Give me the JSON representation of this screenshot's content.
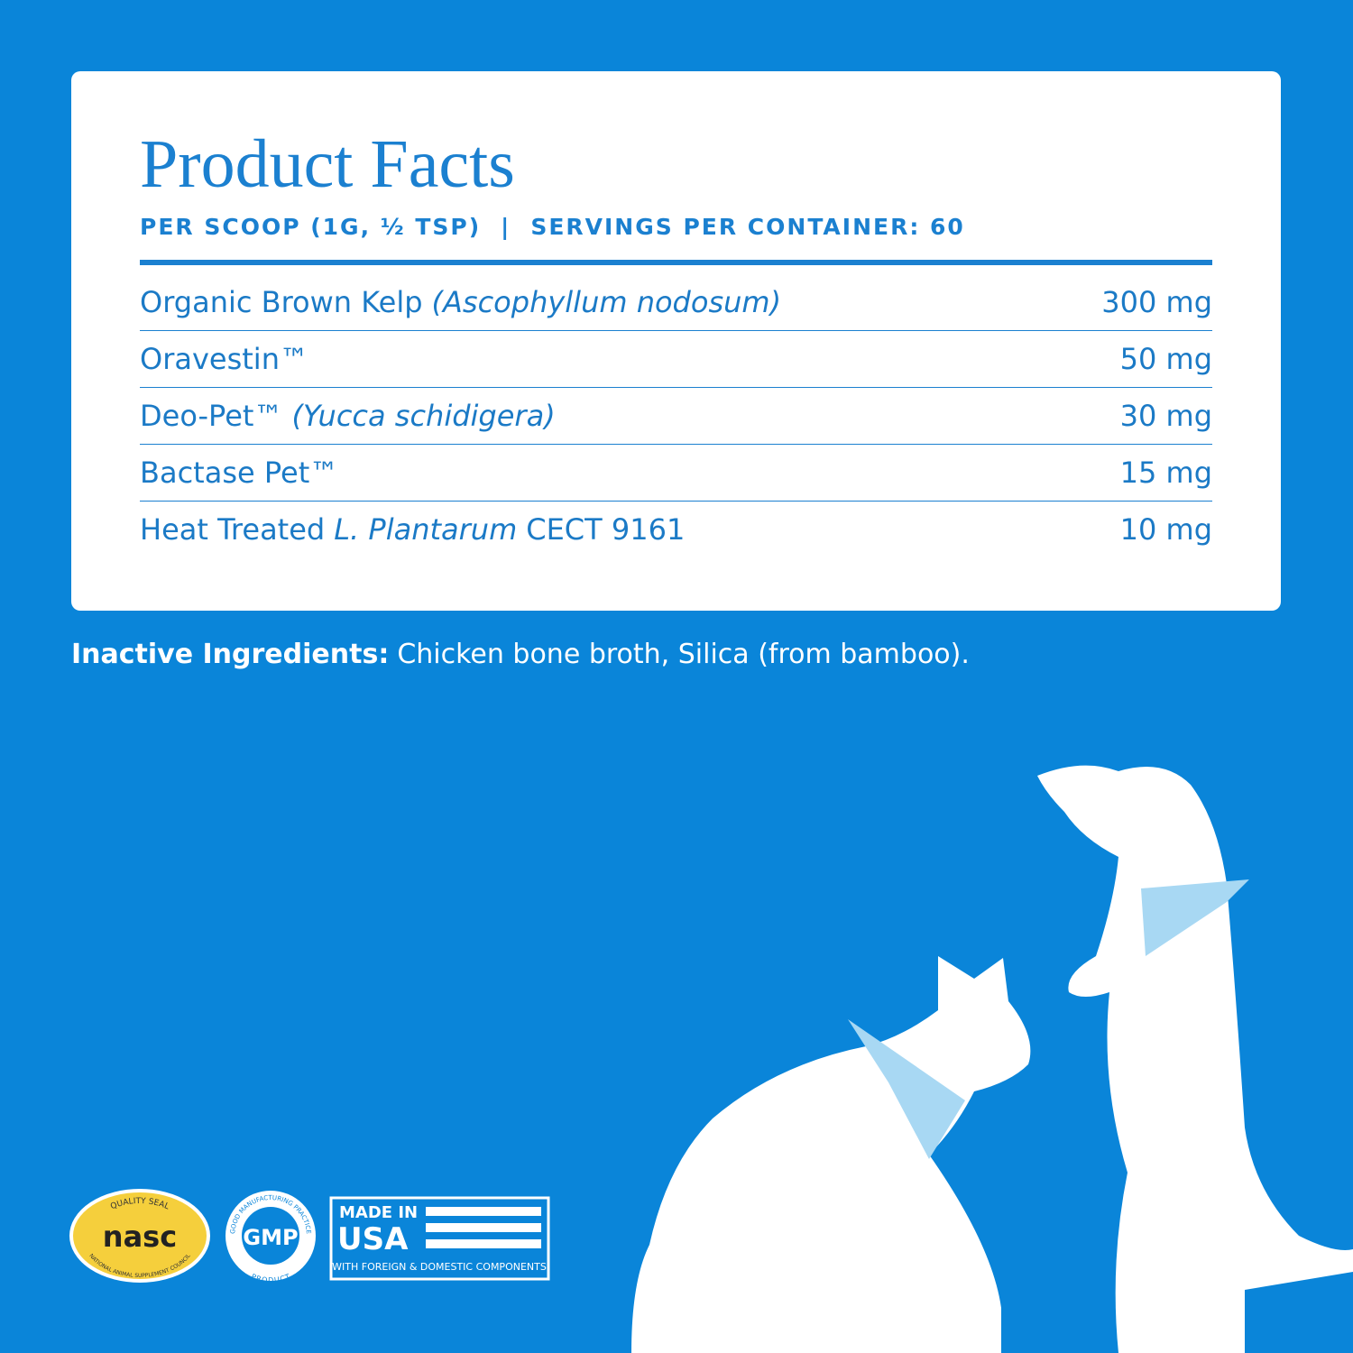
{
  "header": {
    "title": "Product Facts",
    "serving": "PER SCOOP (1G, ½ TSP)",
    "separator": "|",
    "servings": "SERVINGS PER CONTAINER: 60"
  },
  "table": {
    "rows": [
      {
        "name": [
          "Organic Brown Kelp",
          "(Ascophyllum nodosum)"
        ],
        "amount": "300 mg"
      },
      {
        "name": [
          "Oravestin™"
        ],
        "amount": "50 mg"
      },
      {
        "name": [
          "Deo-Pet™",
          "(Yucca schidigera)"
        ],
        "amount": "30 mg"
      },
      {
        "name": [
          "Bactase Pet™"
        ],
        "amount": "15 mg"
      },
      {
        "name": [
          "Heat Treated",
          "L. Plantarum",
          "CECT 9161"
        ],
        "amount": "10 mg"
      }
    ]
  },
  "inactive": {
    "label": "Inactive Ingredients:",
    "text": "Chicken bone broth, Silica (from bamboo)."
  },
  "badges": {
    "nasc": {
      "top": "QUALITY SEAL",
      "name": "nasc",
      "bottom": "NATIONAL ANIMAL SUPPLEMENT COUNCIL"
    },
    "gmp": {
      "top": "GOOD MANUFACTURING PRACTICE",
      "name": "GMP",
      "bottom": "PRODUCT"
    },
    "usa": {
      "line1": "MADE IN",
      "line2": "USA",
      "line3": "WITH FOREIGN & DOMESTIC COMPONENTS"
    }
  }
}
